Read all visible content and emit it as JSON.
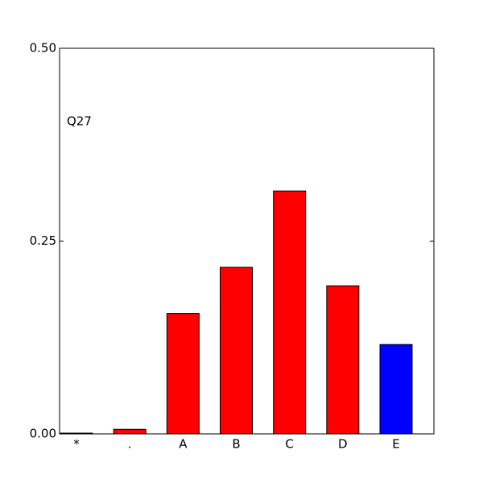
{
  "chart_data": {
    "type": "bar",
    "annotation": "Q27",
    "categories": [
      "*",
      ".",
      "A",
      "B",
      "C",
      "D",
      "E"
    ],
    "values": [
      0.001,
      0.006,
      0.156,
      0.216,
      0.315,
      0.192,
      0.116
    ],
    "colors": [
      "#ff0000",
      "#ff0000",
      "#ff0000",
      "#ff0000",
      "#ff0000",
      "#ff0000",
      "#0000ff"
    ],
    "ylim": [
      0,
      0.5
    ],
    "yticks": [
      {
        "value": 0,
        "label": "0.00"
      },
      0.25,
      {
        "value": 0.5,
        "label": "0.50"
      }
    ],
    "grid": false
  }
}
